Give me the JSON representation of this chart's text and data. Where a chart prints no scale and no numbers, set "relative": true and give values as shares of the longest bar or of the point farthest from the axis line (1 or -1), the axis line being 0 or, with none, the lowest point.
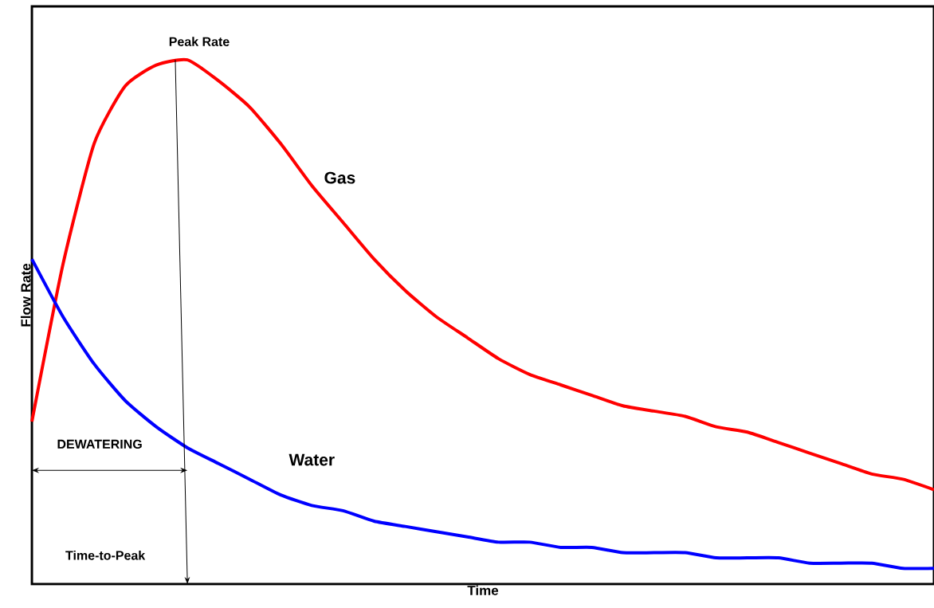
{
  "chart_data": {
    "type": "line",
    "relative": true,
    "xlabel": "Time",
    "ylabel": "Flow Rate",
    "categories": [
      null,
      null,
      null,
      null,
      null,
      null,
      null,
      null,
      null,
      null,
      null,
      null,
      null,
      null,
      null,
      null,
      null,
      null,
      null,
      null,
      null,
      null,
      null,
      null,
      null,
      null,
      null,
      null,
      null,
      null
    ],
    "series": [
      {
        "name": "Gas",
        "color": "#ff0000",
        "values": [
          0.31,
          0.61,
          0.84,
          0.95,
          0.99,
          1.0,
          0.96,
          0.91,
          0.84,
          0.76,
          0.69,
          0.62,
          0.56,
          0.51,
          0.47,
          0.43,
          0.4,
          0.38,
          0.36,
          0.34,
          0.33,
          0.32,
          0.3,
          0.29,
          0.27,
          0.25,
          0.23,
          0.21,
          0.2,
          0.18
        ]
      },
      {
        "name": "Water",
        "color": "#0000ff",
        "values": [
          0.62,
          0.51,
          0.42,
          0.35,
          0.3,
          0.26,
          0.23,
          0.2,
          0.17,
          0.15,
          0.14,
          0.12,
          0.11,
          0.1,
          0.09,
          0.08,
          0.08,
          0.07,
          0.07,
          0.06,
          0.06,
          0.06,
          0.05,
          0.05,
          0.05,
          0.04,
          0.04,
          0.04,
          0.03,
          0.03
        ]
      }
    ],
    "annotations": [
      "Peak Rate",
      "DEWATERING",
      "Time-to-Peak"
    ]
  }
}
